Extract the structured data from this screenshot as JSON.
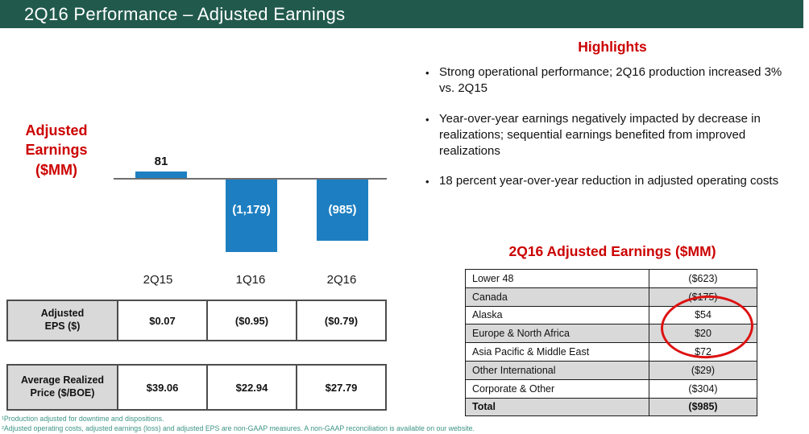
{
  "slide_title": "2Q16 Performance – Adjusted Earnings",
  "colors": {
    "header_green": "#215A4C",
    "accent_red": "#CC0000",
    "bar_blue": "#1D7FC1",
    "table_header_gray": "#D9D9D9",
    "footnote_teal": "#3D9483",
    "annotation_red": "#DD1111"
  },
  "chart": {
    "axis_label": "Adjusted\nEarnings\n($MM)",
    "categories": [
      "2Q15",
      "1Q16",
      "2Q16"
    ],
    "bar_labels": [
      "81",
      "(1,179)",
      "(985)"
    ]
  },
  "chart_data": {
    "type": "bar",
    "title": "Adjusted Earnings ($MM)",
    "categories": [
      "2Q15",
      "1Q16",
      "2Q16"
    ],
    "values": [
      81,
      -1179,
      -985
    ],
    "data_labels": [
      "81",
      "(1,179)",
      "(985)"
    ],
    "xlabel": "",
    "ylabel": "Adjusted Earnings ($MM)",
    "ylim": [
      -1300,
      150
    ],
    "grid": false,
    "legend": false
  },
  "eps_table": {
    "header": "Adjusted\nEPS ($)",
    "values": [
      "$0.07",
      "($0.95)",
      "($0.79)"
    ]
  },
  "price_table": {
    "header": "Average Realized\nPrice ($/BOE)",
    "values": [
      "$39.06",
      "$22.94",
      "$27.79"
    ]
  },
  "highlights": {
    "title": "Highlights",
    "bullet_glyph": "•",
    "bullets": [
      "Strong operational performance; 2Q16 production increased 3% vs. 2Q15",
      "Year-over-year earnings negatively impacted by decrease in realizations; sequential earnings benefited from improved realizations",
      "18 percent year-over-year reduction in adjusted operating costs"
    ]
  },
  "earnings_table": {
    "title": "2Q16 Adjusted Earnings ($MM)",
    "rows": [
      {
        "label": "Lower 48",
        "value": "($623)"
      },
      {
        "label": "Canada",
        "value": "($175)"
      },
      {
        "label": "Alaska",
        "value": "$54"
      },
      {
        "label": "Europe & North Africa",
        "value": "$20"
      },
      {
        "label": "Asia Pacific & Middle East",
        "value": "$72"
      },
      {
        "label": "Other International",
        "value": "($29)"
      },
      {
        "label": "Corporate & Other",
        "value": "($304)"
      },
      {
        "label": "Total",
        "value": "($985)"
      }
    ]
  },
  "footnotes": [
    "¹Production adjusted for downtime and dispositions.",
    "²Adjusted operating costs, adjusted earnings (loss) and adjusted EPS are non-GAAP measures. A non-GAAP reconciliation is available on our website."
  ]
}
